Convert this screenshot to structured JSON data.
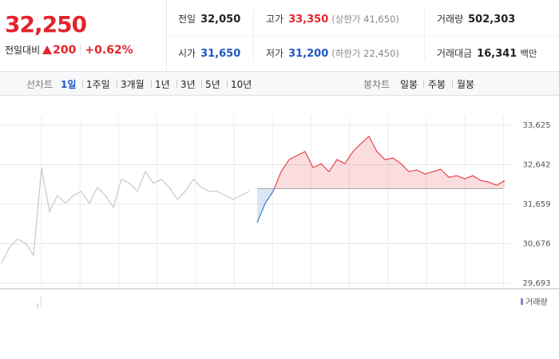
{
  "quote": {
    "price": "32,250",
    "change_label": "전일대비",
    "change": "200",
    "change_rate": "+0.62%"
  },
  "stats": [
    {
      "label": "전일",
      "value": "32,050",
      "color": "#222222"
    },
    {
      "label": "고가",
      "value": "33,350",
      "note": "(상한가 41,650)",
      "color": "#e5232b"
    },
    {
      "label": "거래량",
      "value": "502,303",
      "color": "#222222"
    },
    {
      "label": "시가",
      "value": "31,650",
      "color": "#1f57c3"
    },
    {
      "label": "저가",
      "value": "31,200",
      "note": "(하한가 22,450)",
      "color": "#1f57c3"
    },
    {
      "label": "거래대금",
      "value": "16,341",
      "unit": "백만",
      "color": "#222222"
    }
  ],
  "tabs": {
    "line_label": "선차트",
    "line": [
      "1일",
      "1주일",
      "3개월",
      "1년",
      "3년",
      "5년",
      "10년"
    ],
    "active_line": 0,
    "candle_label": "봉차트",
    "candle": [
      "일봉",
      "주봉",
      "월봉"
    ]
  },
  "chart_data": {
    "type": "line",
    "series": [
      {
        "color": "#c8c8c8",
        "values": [
          30190,
          30590,
          30790,
          30690,
          30390,
          32570,
          31480,
          31880,
          31680,
          31880,
          31980,
          31680,
          32080,
          31880,
          31580,
          32280,
          32180,
          31980,
          32470,
          32180,
          32280,
          32080,
          31780,
          31980,
          32280,
          32080,
          31980,
          31980,
          31880,
          31780,
          31880,
          31980,
          null,
          null,
          null,
          null,
          null,
          null,
          null,
          null,
          null,
          null,
          null,
          null,
          null,
          null,
          null,
          null,
          null,
          null,
          null,
          null,
          null,
          null,
          null,
          null,
          null,
          null,
          null,
          null,
          null,
          null,
          null,
          null
        ]
      },
      {
        "color": "#e8434b",
        "down_color": "#3a7ad5",
        "values": [
          null,
          null,
          null,
          null,
          null,
          null,
          null,
          null,
          null,
          null,
          null,
          null,
          null,
          null,
          null,
          null,
          null,
          null,
          null,
          null,
          null,
          null,
          null,
          null,
          null,
          null,
          null,
          null,
          null,
          null,
          null,
          null,
          31200,
          31680,
          31980,
          32470,
          32770,
          32870,
          32970,
          32570,
          32670,
          32470,
          32770,
          32670,
          32970,
          33170,
          33350,
          32970,
          32770,
          32810,
          32670,
          32470,
          32510,
          32410,
          32470,
          32530,
          32330,
          32370,
          32290,
          32370,
          32250,
          32210,
          32130,
          32250
        ]
      }
    ],
    "baseline": 32050,
    "ylim": [
      29554,
      33863
    ],
    "yticks": [
      {
        "value": 29693,
        "label": "29,693"
      },
      {
        "value": 30676,
        "label": "30,676"
      },
      {
        "value": 31659,
        "label": "31,659"
      },
      {
        "value": 32642,
        "label": "32,642"
      },
      {
        "value": 33625,
        "label": "33,625"
      }
    ],
    "grid": true,
    "volume_legend": "거래량"
  }
}
